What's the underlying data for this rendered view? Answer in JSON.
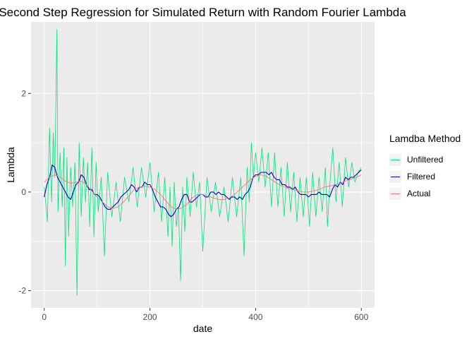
{
  "chart_data": {
    "type": "line",
    "title": "Second Step Regression for Simulated Return with Random Fourier Lambda",
    "xlabel": "date",
    "ylabel": "Lambda",
    "xlim": [
      -25,
      625
    ],
    "ylim": [
      -2.35,
      3.45
    ],
    "xticks": [
      0,
      200,
      400,
      600
    ],
    "yticks": [
      -2,
      0,
      2
    ],
    "grid": true,
    "legend": {
      "title": "Lamdba Method",
      "placement": "right"
    },
    "series": [
      {
        "name": "Unfiltered",
        "color": "#00E57A",
        "x": [
          0,
          6,
          10,
          14,
          17,
          20,
          24,
          26,
          30,
          34,
          37,
          40,
          43,
          46,
          50,
          54,
          58,
          62,
          66,
          70,
          74,
          78,
          82,
          86,
          90,
          94,
          98,
          102,
          108,
          114,
          120,
          128,
          136,
          144,
          152,
          160,
          168,
          176,
          184,
          192,
          200,
          208,
          216,
          222,
          228,
          234,
          238,
          242,
          246,
          250,
          254,
          258,
          262,
          266,
          270,
          276,
          282,
          288,
          294,
          300,
          308,
          316,
          324,
          332,
          340,
          348,
          356,
          364,
          372,
          378,
          384,
          388,
          392,
          396,
          400,
          406,
          412,
          418,
          424,
          430,
          436,
          442,
          448,
          454,
          460,
          466,
          472,
          478,
          484,
          490,
          496,
          502,
          508,
          514,
          520,
          526,
          532,
          536,
          540,
          546,
          552,
          558,
          564,
          570,
          576,
          582,
          588,
          594,
          600
        ],
        "values": [
          0.1,
          -0.6,
          1.3,
          -0.2,
          1.2,
          0.3,
          3.3,
          -0.4,
          0.8,
          -0.3,
          0.9,
          -1.5,
          0.7,
          -0.9,
          0.5,
          -0.3,
          0.6,
          -2.1,
          1.0,
          -0.5,
          0.7,
          -0.2,
          0.6,
          -0.7,
          0.9,
          -0.9,
          0.6,
          -0.4,
          0.3,
          -1.3,
          0.4,
          -0.5,
          0.2,
          -0.6,
          0.3,
          -0.2,
          0.5,
          -0.3,
          0.5,
          -0.1,
          0.6,
          -0.4,
          0.4,
          -0.6,
          0.3,
          -0.9,
          0.1,
          -1.1,
          0.2,
          -0.7,
          -0.3,
          -1.8,
          0.1,
          -0.8,
          0.3,
          -0.5,
          0.4,
          -0.3,
          0.2,
          -1.2,
          0.3,
          -0.4,
          0.2,
          -0.5,
          0.1,
          -0.6,
          0.3,
          -0.5,
          0.3,
          -1.3,
          0.5,
          -0.2,
          1.0,
          0.3,
          0.8,
          0.2,
          0.9,
          0.1,
          0.8,
          -0.3,
          0.8,
          -0.3,
          0.5,
          -0.5,
          0.6,
          -0.4,
          0.4,
          -0.6,
          0.3,
          -0.5,
          0.3,
          -0.7,
          0.4,
          -0.5,
          0.3,
          -0.4,
          0.5,
          -0.7,
          0.1,
          0.9,
          -0.2,
          0.6,
          -0.3,
          0.7,
          0.1,
          0.6,
          0.2,
          0.4,
          0.5
        ]
      },
      {
        "name": "Filtered",
        "color": "#0000CC",
        "x": [
          0,
          5,
          10,
          15,
          20,
          25,
          30,
          35,
          40,
          45,
          50,
          55,
          60,
          65,
          70,
          75,
          80,
          85,
          90,
          95,
          100,
          105,
          110,
          115,
          120,
          125,
          130,
          135,
          140,
          145,
          150,
          155,
          160,
          165,
          170,
          175,
          180,
          185,
          190,
          195,
          200,
          205,
          210,
          215,
          220,
          225,
          230,
          235,
          240,
          245,
          250,
          255,
          260,
          265,
          270,
          275,
          280,
          285,
          290,
          295,
          300,
          305,
          310,
          315,
          320,
          325,
          330,
          335,
          340,
          345,
          350,
          355,
          360,
          365,
          370,
          375,
          380,
          385,
          390,
          395,
          400,
          405,
          410,
          415,
          420,
          425,
          430,
          435,
          440,
          445,
          450,
          455,
          460,
          465,
          470,
          475,
          480,
          485,
          490,
          495,
          500,
          505,
          510,
          515,
          520,
          525,
          530,
          535,
          540,
          545,
          550,
          555,
          560,
          565,
          570,
          575,
          580,
          585,
          590,
          595,
          600
        ],
        "values": [
          -0.1,
          0.15,
          0.3,
          0.55,
          0.5,
          0.3,
          0.2,
          0.1,
          0.0,
          -0.1,
          -0.15,
          0.0,
          0.15,
          0.2,
          0.35,
          0.3,
          0.15,
          0.05,
          0.05,
          -0.05,
          -0.05,
          -0.1,
          -0.2,
          -0.3,
          -0.35,
          -0.35,
          -0.3,
          -0.25,
          -0.2,
          -0.1,
          -0.05,
          0.0,
          0.05,
          0.15,
          0.1,
          0.0,
          0.1,
          0.1,
          0.2,
          0.15,
          0.15,
          0.05,
          -0.1,
          -0.2,
          -0.3,
          -0.3,
          -0.35,
          -0.45,
          -0.5,
          -0.45,
          -0.35,
          -0.3,
          -0.15,
          -0.05,
          -0.05,
          -0.2,
          -0.2,
          -0.15,
          -0.1,
          -0.05,
          -0.05,
          -0.1,
          -0.1,
          0.0,
          0.0,
          -0.05,
          0.0,
          -0.05,
          -0.05,
          -0.1,
          -0.15,
          -0.1,
          -0.1,
          -0.15,
          -0.1,
          -0.15,
          -0.05,
          0.0,
          0.1,
          0.3,
          0.35,
          0.35,
          0.4,
          0.4,
          0.4,
          0.35,
          0.4,
          0.3,
          0.25,
          0.25,
          0.15,
          0.15,
          0.1,
          0.1,
          0.05,
          0.1,
          0.0,
          -0.05,
          -0.05,
          -0.05,
          -0.1,
          -0.05,
          -0.05,
          -0.05,
          0.0,
          -0.05,
          -0.05,
          -0.05,
          -0.1,
          0.05,
          0.15,
          0.1,
          0.2,
          0.15,
          0.3,
          0.25,
          0.3,
          0.3,
          0.35,
          0.4,
          0.45
        ]
      },
      {
        "name": "Actual",
        "color": "#F8766D",
        "x": [
          0,
          10,
          20,
          30,
          40,
          50,
          60,
          70,
          80,
          90,
          100,
          110,
          120,
          130,
          140,
          150,
          160,
          170,
          180,
          190,
          200,
          210,
          220,
          230,
          240,
          250,
          260,
          270,
          280,
          290,
          300,
          310,
          320,
          330,
          340,
          350,
          360,
          370,
          380,
          390,
          400,
          410,
          420,
          430,
          440,
          450,
          460,
          470,
          480,
          490,
          500,
          510,
          520,
          530,
          540,
          550,
          560,
          570,
          580,
          590,
          600
        ],
        "values": [
          0.2,
          0.3,
          0.35,
          0.3,
          0.22,
          0.18,
          0.2,
          0.22,
          0.15,
          0.02,
          -0.1,
          -0.2,
          -0.3,
          -0.33,
          -0.3,
          -0.2,
          -0.08,
          0.05,
          0.1,
          0.12,
          0.1,
          0.05,
          -0.05,
          -0.18,
          -0.3,
          -0.35,
          -0.33,
          -0.25,
          -0.12,
          -0.05,
          -0.05,
          -0.08,
          -0.12,
          -0.15,
          -0.15,
          -0.12,
          -0.05,
          0.05,
          0.15,
          0.25,
          0.32,
          0.35,
          0.32,
          0.25,
          0.18,
          0.12,
          0.08,
          0.05,
          0.02,
          0.0,
          0.0,
          0.02,
          0.05,
          0.1,
          0.12,
          0.15,
          0.18,
          0.22,
          0.26,
          0.3,
          0.35
        ]
      }
    ]
  }
}
